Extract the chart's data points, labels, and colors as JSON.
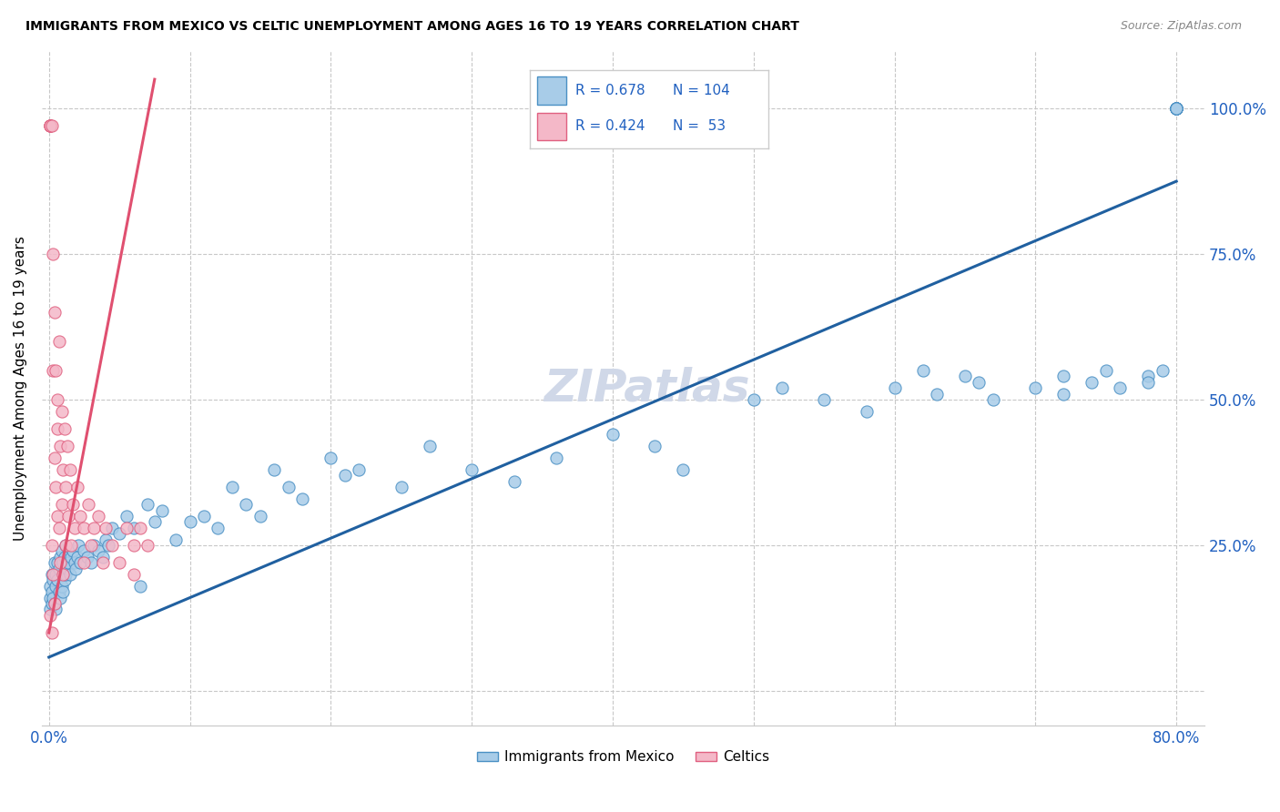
{
  "title": "IMMIGRANTS FROM MEXICO VS CELTIC UNEMPLOYMENT AMONG AGES 16 TO 19 YEARS CORRELATION CHART",
  "source": "Source: ZipAtlas.com",
  "ylabel": "Unemployment Among Ages 16 to 19 years",
  "blue_R": 0.678,
  "blue_N": 104,
  "pink_R": 0.424,
  "pink_N": 53,
  "blue_fill": "#a8cce8",
  "pink_fill": "#f4b8c8",
  "blue_edge": "#4a90c4",
  "pink_edge": "#e06080",
  "blue_line_color": "#2060a0",
  "pink_line_color": "#e05070",
  "text_blue": "#2060c0",
  "watermark_color": "#d0d8e8",
  "blue_scatter_x": [
    0.001,
    0.001,
    0.001,
    0.002,
    0.002,
    0.002,
    0.003,
    0.003,
    0.004,
    0.004,
    0.005,
    0.005,
    0.005,
    0.006,
    0.006,
    0.007,
    0.007,
    0.008,
    0.008,
    0.009,
    0.009,
    0.01,
    0.01,
    0.011,
    0.011,
    0.012,
    0.012,
    0.013,
    0.014,
    0.015,
    0.016,
    0.017,
    0.018,
    0.019,
    0.02,
    0.021,
    0.022,
    0.025,
    0.027,
    0.03,
    0.032,
    0.035,
    0.038,
    0.04,
    0.042,
    0.045,
    0.05,
    0.055,
    0.06,
    0.065,
    0.07,
    0.075,
    0.08,
    0.09,
    0.1,
    0.11,
    0.12,
    0.13,
    0.14,
    0.15,
    0.16,
    0.17,
    0.18,
    0.2,
    0.21,
    0.22,
    0.25,
    0.27,
    0.3,
    0.33,
    0.36,
    0.4,
    0.43,
    0.45,
    0.5,
    0.52,
    0.55,
    0.58,
    0.6,
    0.62,
    0.63,
    0.65,
    0.66,
    0.67,
    0.7,
    0.72,
    0.72,
    0.74,
    0.75,
    0.76,
    0.78,
    0.78,
    0.79,
    0.8,
    0.8,
    0.8,
    0.8,
    0.8,
    0.8,
    0.8,
    0.8,
    0.8,
    0.8,
    0.8
  ],
  "blue_scatter_y": [
    0.14,
    0.16,
    0.18,
    0.15,
    0.17,
    0.2,
    0.16,
    0.19,
    0.15,
    0.22,
    0.18,
    0.2,
    0.14,
    0.19,
    0.22,
    0.17,
    0.21,
    0.16,
    0.23,
    0.18,
    0.24,
    0.17,
    0.22,
    0.19,
    0.23,
    0.2,
    0.25,
    0.21,
    0.22,
    0.2,
    0.23,
    0.24,
    0.22,
    0.21,
    0.23,
    0.25,
    0.22,
    0.24,
    0.23,
    0.22,
    0.25,
    0.24,
    0.23,
    0.26,
    0.25,
    0.28,
    0.27,
    0.3,
    0.28,
    0.18,
    0.32,
    0.29,
    0.31,
    0.26,
    0.29,
    0.3,
    0.28,
    0.35,
    0.32,
    0.3,
    0.38,
    0.35,
    0.33,
    0.4,
    0.37,
    0.38,
    0.35,
    0.42,
    0.38,
    0.36,
    0.4,
    0.44,
    0.42,
    0.38,
    0.5,
    0.52,
    0.5,
    0.48,
    0.52,
    0.55,
    0.51,
    0.54,
    0.53,
    0.5,
    0.52,
    0.54,
    0.51,
    0.53,
    0.55,
    0.52,
    0.54,
    0.53,
    0.55,
    1.0,
    1.0,
    1.0,
    1.0,
    1.0,
    1.0,
    1.0,
    1.0,
    1.0,
    1.0,
    1.0
  ],
  "pink_scatter_x": [
    0.001,
    0.001,
    0.001,
    0.001,
    0.001,
    0.002,
    0.002,
    0.002,
    0.003,
    0.003,
    0.003,
    0.004,
    0.004,
    0.004,
    0.005,
    0.005,
    0.006,
    0.006,
    0.006,
    0.007,
    0.007,
    0.008,
    0.008,
    0.009,
    0.009,
    0.01,
    0.01,
    0.011,
    0.012,
    0.012,
    0.013,
    0.014,
    0.015,
    0.016,
    0.017,
    0.018,
    0.02,
    0.022,
    0.025,
    0.025,
    0.028,
    0.03,
    0.032,
    0.035,
    0.038,
    0.04,
    0.045,
    0.05,
    0.055,
    0.06,
    0.06,
    0.065,
    0.07
  ],
  "pink_scatter_y": [
    0.97,
    0.97,
    0.97,
    0.97,
    0.13,
    0.97,
    0.25,
    0.1,
    0.75,
    0.55,
    0.2,
    0.65,
    0.4,
    0.15,
    0.55,
    0.35,
    0.5,
    0.3,
    0.45,
    0.6,
    0.28,
    0.42,
    0.22,
    0.48,
    0.32,
    0.38,
    0.2,
    0.45,
    0.35,
    0.25,
    0.42,
    0.3,
    0.38,
    0.25,
    0.32,
    0.28,
    0.35,
    0.3,
    0.22,
    0.28,
    0.32,
    0.25,
    0.28,
    0.3,
    0.22,
    0.28,
    0.25,
    0.22,
    0.28,
    0.25,
    0.2,
    0.28,
    0.25
  ],
  "blue_line_x0": 0.0,
  "blue_line_x1": 0.8,
  "blue_line_y0": 0.058,
  "blue_line_y1": 0.875,
  "pink_line_x0": 0.0,
  "pink_line_x1": 0.075,
  "pink_line_y0": 0.1,
  "pink_line_y1": 1.05,
  "xmin": -0.005,
  "xmax": 0.82,
  "ymin": -0.06,
  "ymax": 1.1
}
